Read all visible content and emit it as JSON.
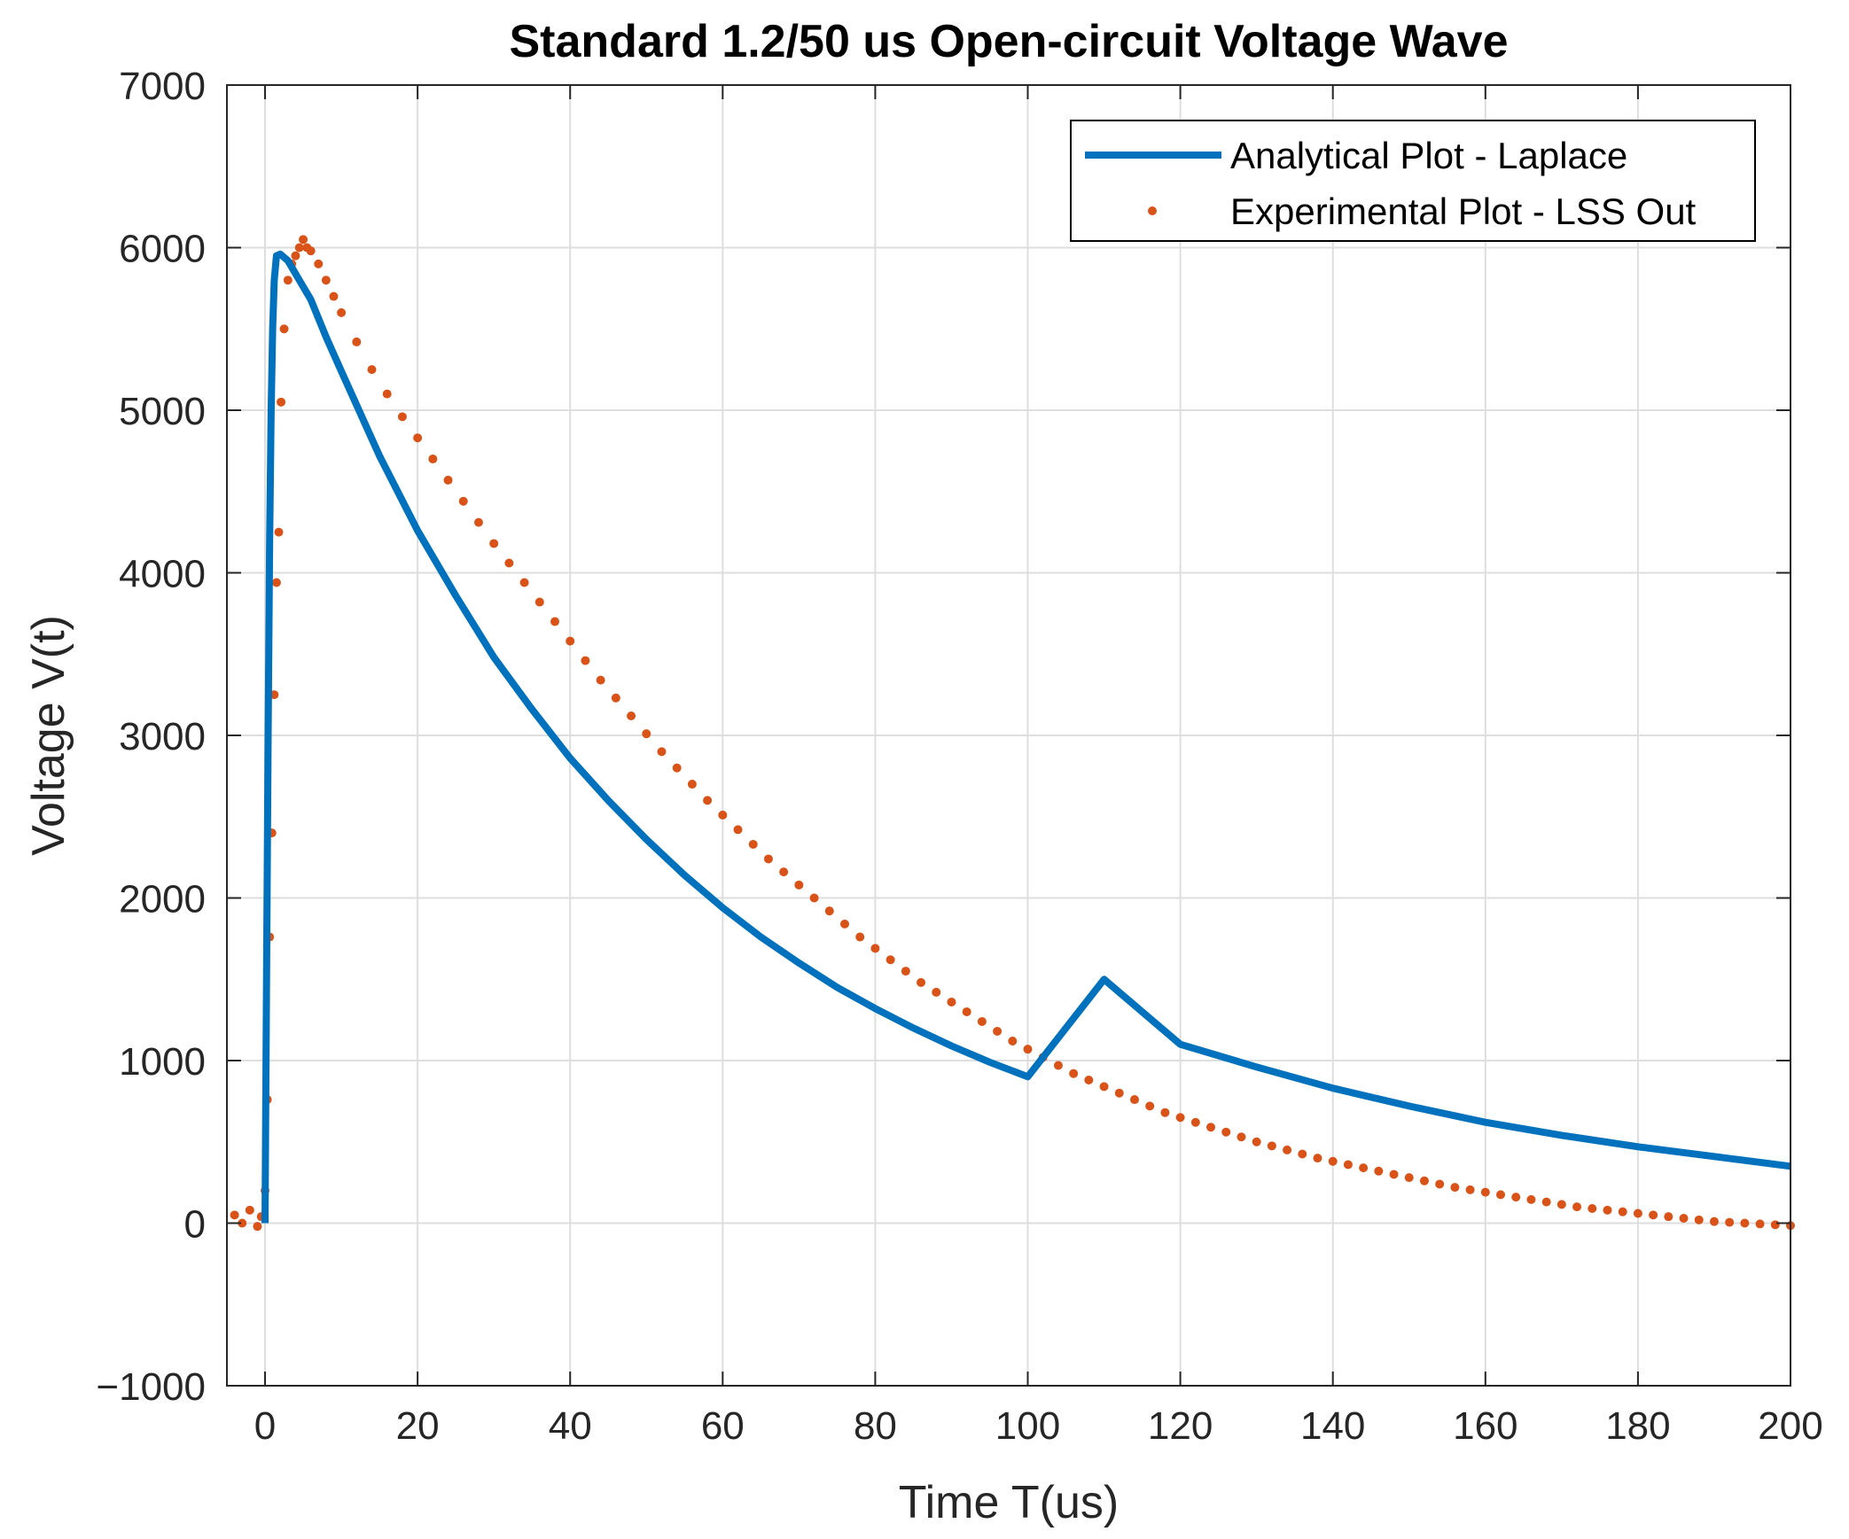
{
  "chart_data": {
    "type": "line",
    "title": "Standard 1.2/50 us Open-circuit Voltage Wave",
    "xlabel": "Time T(us)",
    "ylabel": "Voltage V(t)",
    "xlim": [
      -5,
      200
    ],
    "ylim": [
      -1000,
      7000
    ],
    "xticks": [
      0,
      20,
      40,
      60,
      80,
      100,
      120,
      140,
      160,
      180,
      200
    ],
    "yticks": [
      -1000,
      0,
      1000,
      2000,
      3000,
      4000,
      5000,
      6000,
      7000
    ],
    "xtick_labels": [
      "0",
      "20",
      "40",
      "60",
      "80",
      "100",
      "120",
      "140",
      "160",
      "180",
      "200"
    ],
    "ytick_labels": [
      "−1000",
      "0",
      "1000",
      "2000",
      "3000",
      "4000",
      "5000",
      "6000",
      "7000"
    ],
    "grid": true,
    "legend_position": "top-right",
    "series": [
      {
        "name": "Analytical Plot - Laplace",
        "style": "line",
        "color": "#0072BD",
        "x": [
          0,
          0.2,
          0.4,
          0.6,
          0.8,
          1.0,
          1.2,
          1.5,
          2.0,
          2.5,
          3,
          4,
          5,
          6,
          8,
          10,
          15,
          20,
          25,
          30,
          35,
          40,
          45,
          50,
          55,
          60,
          65,
          70,
          75,
          80,
          85,
          90,
          95,
          100,
          110,
          120,
          130,
          140,
          150,
          160,
          170,
          180,
          190,
          200
        ],
        "y": [
          0,
          1500,
          3000,
          4200,
          5000,
          5500,
          5800,
          5950,
          5960,
          5940,
          5920,
          5840,
          5760,
          5680,
          5450,
          5240,
          4720,
          4260,
          3860,
          3480,
          3160,
          2860,
          2600,
          2360,
          2140,
          1940,
          1760,
          1600,
          1450,
          1320,
          1200,
          1090,
          990,
          900,
          1500,
          1100,
          960,
          830,
          720,
          620,
          540,
          470,
          410,
          350
        ]
      },
      {
        "name": "Experimental Plot - LSS Out",
        "style": "points",
        "color": "#D95319",
        "x": [
          -4,
          -3,
          -2,
          -1,
          -0.5,
          0,
          0.3,
          0.6,
          0.9,
          1.2,
          1.5,
          1.8,
          2.1,
          2.5,
          3,
          3.5,
          4,
          4.5,
          5,
          5.5,
          6,
          7,
          8,
          9,
          10,
          12,
          14,
          16,
          18,
          20,
          22,
          24,
          26,
          28,
          30,
          32,
          34,
          36,
          38,
          40,
          42,
          44,
          46,
          48,
          50,
          52,
          54,
          56,
          58,
          60,
          62,
          64,
          66,
          68,
          70,
          72,
          74,
          76,
          78,
          80,
          82,
          84,
          86,
          88,
          90,
          92,
          94,
          96,
          98,
          100,
          102,
          104,
          106,
          108,
          110,
          112,
          114,
          116,
          118,
          120,
          122,
          124,
          126,
          128,
          130,
          132,
          134,
          136,
          138,
          140,
          142,
          144,
          146,
          148,
          150,
          152,
          154,
          156,
          158,
          160,
          162,
          164,
          166,
          168,
          170,
          172,
          174,
          176,
          178,
          180,
          182,
          184,
          186,
          188,
          190,
          192,
          194,
          196,
          198,
          200
        ],
        "y": [
          50,
          0,
          80,
          -20,
          40,
          200,
          760,
          1760,
          2400,
          3250,
          3940,
          4250,
          5050,
          5500,
          5800,
          5900,
          5950,
          6000,
          6050,
          6000,
          5980,
          5900,
          5800,
          5700,
          5600,
          5420,
          5250,
          5100,
          4960,
          4830,
          4700,
          4570,
          4440,
          4310,
          4180,
          4060,
          3940,
          3820,
          3700,
          3580,
          3460,
          3340,
          3230,
          3120,
          3010,
          2900,
          2800,
          2700,
          2600,
          2510,
          2420,
          2330,
          2240,
          2160,
          2080,
          2000,
          1920,
          1840,
          1760,
          1690,
          1620,
          1550,
          1480,
          1420,
          1360,
          1300,
          1240,
          1180,
          1120,
          1070,
          1020,
          970,
          920,
          880,
          840,
          800,
          760,
          720,
          680,
          650,
          620,
          590,
          560,
          530,
          500,
          475,
          450,
          425,
          400,
          380,
          360,
          340,
          320,
          300,
          280,
          260,
          240,
          220,
          205,
          190,
          175,
          160,
          145,
          130,
          115,
          100,
          90,
          80,
          70,
          60,
          50,
          40,
          30,
          20,
          10,
          5,
          0,
          -5,
          -10,
          -15
        ]
      }
    ]
  }
}
